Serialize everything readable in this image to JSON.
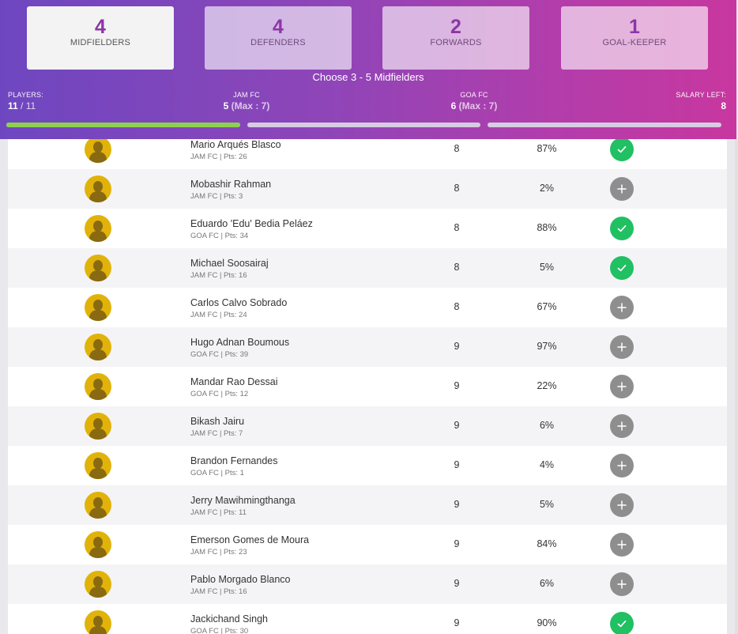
{
  "tabs": [
    {
      "count": "4",
      "label": "MIDFIELDERS"
    },
    {
      "count": "4",
      "label": "DEFENDERS"
    },
    {
      "count": "2",
      "label": "FORWARDS"
    },
    {
      "count": "1",
      "label": "GOAL-KEEPER"
    }
  ],
  "choose_text": "Choose 3 - 5 Midfielders",
  "stats": {
    "players": {
      "label": "PLAYERS:",
      "value": "11",
      "total": "/ 11"
    },
    "team1": {
      "label": "JAM FC",
      "value": "5",
      "max": "(Max : 7)"
    },
    "team2": {
      "label": "GOA FC",
      "value": "6",
      "max": "(Max : 7)"
    },
    "salary": {
      "label": "SALARY LEFT:",
      "value": "8"
    }
  },
  "progress": {
    "players": 1.0,
    "team1": 0.0,
    "team2": 0.0
  },
  "colors": {
    "accent": "#8d36a6",
    "selected": "#21c063",
    "unselected": "#8e8e8e",
    "progress": "#8fd14f",
    "avatar": "#e1b30a"
  },
  "players": [
    {
      "name": "Mario Arqués Blasco",
      "meta": "JAM FC | Pts: 26",
      "price": "8",
      "pct": "87%",
      "selected": true
    },
    {
      "name": "Mobashir Rahman",
      "meta": "JAM FC | Pts: 3",
      "price": "8",
      "pct": "2%",
      "selected": false
    },
    {
      "name": "Eduardo 'Edu' Bedia Peláez",
      "meta": "GOA FC | Pts: 34",
      "price": "8",
      "pct": "88%",
      "selected": true
    },
    {
      "name": "Michael Soosairaj",
      "meta": "JAM FC | Pts: 16",
      "price": "8",
      "pct": "5%",
      "selected": true
    },
    {
      "name": "Carlos Calvo Sobrado",
      "meta": "JAM FC | Pts: 24",
      "price": "8",
      "pct": "67%",
      "selected": false
    },
    {
      "name": "Hugo Adnan Boumous",
      "meta": "GOA FC | Pts: 39",
      "price": "9",
      "pct": "97%",
      "selected": false
    },
    {
      "name": "Mandar Rao Dessai",
      "meta": "GOA FC | Pts: 12",
      "price": "9",
      "pct": "22%",
      "selected": false
    },
    {
      "name": "Bikash Jairu",
      "meta": "JAM FC | Pts: 7",
      "price": "9",
      "pct": "6%",
      "selected": false
    },
    {
      "name": "Brandon Fernandes",
      "meta": "GOA FC | Pts: 1",
      "price": "9",
      "pct": "4%",
      "selected": false
    },
    {
      "name": "Jerry Mawihmingthanga",
      "meta": "JAM FC | Pts: 11",
      "price": "9",
      "pct": "5%",
      "selected": false
    },
    {
      "name": "Emerson Gomes de Moura",
      "meta": "JAM FC | Pts: 23",
      "price": "9",
      "pct": "84%",
      "selected": false
    },
    {
      "name": "Pablo Morgado Blanco",
      "meta": "JAM FC | Pts: 16",
      "price": "9",
      "pct": "6%",
      "selected": false
    },
    {
      "name": "Jackichand Singh",
      "meta": "GOA FC | Pts: 30",
      "price": "9",
      "pct": "90%",
      "selected": true
    }
  ]
}
